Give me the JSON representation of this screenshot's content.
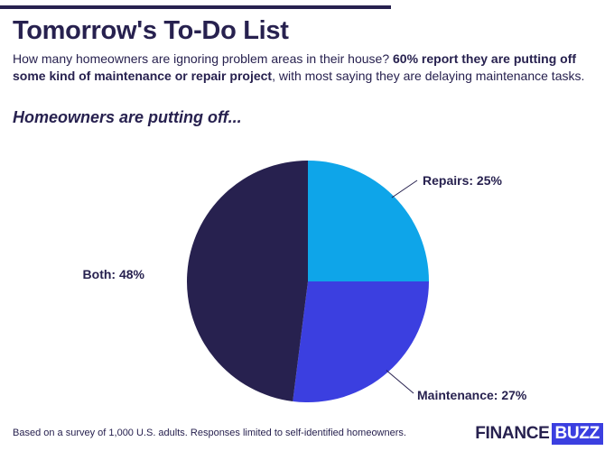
{
  "title": "Tomorrow's To-Do List",
  "subtitle": {
    "part1": "How many homeowners are ignoring problem areas in their house? ",
    "bold": "60% report they are putting off some kind of maintenance or repair project",
    "part2": ", with most saying they are delaying maintenance tasks."
  },
  "chart_heading": "Homeowners are putting off...",
  "chart_data": {
    "type": "pie",
    "title": "Homeowners are putting off...",
    "slices": [
      {
        "label": "Repairs",
        "value": 25,
        "display": "Repairs: 25%",
        "color": "#0ea5e9"
      },
      {
        "label": "Maintenance",
        "value": 27,
        "display": "Maintenance: 27%",
        "color": "#3b3fe0"
      },
      {
        "label": "Both",
        "value": 48,
        "display": "Both: 48%",
        "color": "#27214f"
      }
    ],
    "legend": "none",
    "label_style": "callout"
  },
  "footnote": "Based on a survey of 1,000 U.S. adults. Responses limited to self-identified homeowners.",
  "logo": {
    "part1": "FINANCE",
    "part2": "BUZZ"
  },
  "colors": {
    "text": "#27214f",
    "accent": "#3b3fe0",
    "light_blue": "#0ea5e9"
  }
}
